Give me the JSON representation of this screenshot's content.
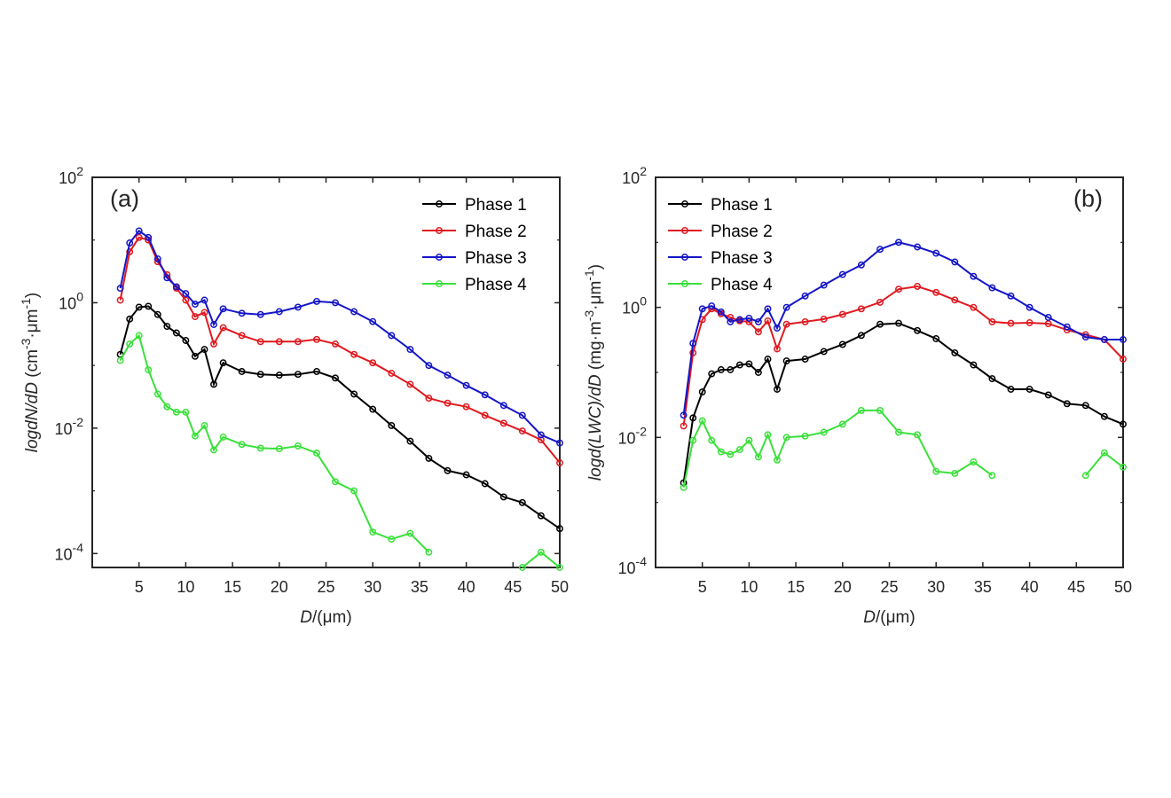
{
  "chart_data": [
    {
      "type": "line",
      "panel_label": "(a)",
      "xlabel_italic": "D",
      "xlabel_rest": "/(μm)",
      "ylabel_italic": "logdN/dD",
      "ylabel_rest": " (cm",
      "ylabel_sup1": "-3",
      "ylabel_mid": "·μm",
      "ylabel_sup2": "-1",
      "ylabel_end": ")",
      "xlim": [
        0,
        50
      ],
      "ylim": [
        6e-05,
        100
      ],
      "yscale": "log",
      "xticks": [
        5,
        10,
        15,
        20,
        25,
        30,
        35,
        40,
        45,
        50
      ],
      "xtick_labels": [
        "5",
        "10",
        "15",
        "20",
        "25",
        "30",
        "35",
        "40",
        "45",
        "50"
      ],
      "yticks": [
        0.0001,
        0.01,
        1,
        100
      ],
      "ytick_labels": [
        {
          "base": "10",
          "exp": "-4"
        },
        {
          "base": "10",
          "exp": "-2"
        },
        {
          "base": "10",
          "exp": "0"
        },
        {
          "base": "10",
          "exp": "2"
        }
      ],
      "legend_position": "top-right",
      "series": [
        {
          "name": "Phase 1",
          "color": "#000000",
          "x": [
            3,
            4,
            5,
            6,
            7,
            8,
            9,
            10,
            11,
            12,
            13,
            14,
            16,
            18,
            20,
            22,
            24,
            26,
            28,
            30,
            32,
            34,
            36,
            38,
            40,
            42,
            44,
            46,
            48,
            50
          ],
          "y": [
            0.15,
            0.55,
            0.85,
            0.88,
            0.65,
            0.42,
            0.33,
            0.25,
            0.14,
            0.18,
            0.05,
            0.11,
            0.08,
            0.072,
            0.07,
            0.072,
            0.08,
            0.063,
            0.035,
            0.02,
            0.011,
            0.0062,
            0.0033,
            0.0021,
            0.0018,
            0.0013,
            0.0008,
            0.00065,
            0.0004,
            0.00025
          ]
        },
        {
          "name": "Phase 2",
          "color": "#e0191f",
          "x": [
            3,
            4,
            5,
            6,
            7,
            8,
            9,
            10,
            11,
            12,
            13,
            14,
            16,
            18,
            20,
            22,
            24,
            26,
            28,
            30,
            32,
            34,
            36,
            38,
            40,
            42,
            44,
            46,
            48,
            50
          ],
          "y": [
            1.1,
            6.5,
            11,
            10,
            4.5,
            2.8,
            1.7,
            1.1,
            0.6,
            0.7,
            0.22,
            0.4,
            0.3,
            0.24,
            0.24,
            0.24,
            0.26,
            0.22,
            0.15,
            0.11,
            0.075,
            0.05,
            0.03,
            0.025,
            0.022,
            0.016,
            0.012,
            0.009,
            0.0065,
            0.0028
          ]
        },
        {
          "name": "Phase 3",
          "color": "#1515c8",
          "x": [
            3,
            4,
            5,
            6,
            7,
            8,
            9,
            10,
            11,
            12,
            13,
            14,
            16,
            18,
            20,
            22,
            24,
            26,
            28,
            30,
            32,
            34,
            36,
            38,
            40,
            42,
            44,
            46,
            48,
            50
          ],
          "y": [
            1.7,
            9,
            14,
            11,
            5,
            2.5,
            1.8,
            1.4,
            0.95,
            1.1,
            0.45,
            0.8,
            0.68,
            0.65,
            0.72,
            0.85,
            1.05,
            1.0,
            0.72,
            0.5,
            0.3,
            0.18,
            0.1,
            0.07,
            0.048,
            0.034,
            0.023,
            0.016,
            0.0078,
            0.0058
          ]
        },
        {
          "name": "Phase 4",
          "color": "#3ae03a",
          "x": [
            3,
            4,
            5,
            6,
            7,
            8,
            9,
            10,
            11,
            12,
            13,
            14,
            16,
            18,
            20,
            22,
            24,
            26,
            28,
            30,
            32,
            34,
            36,
            null,
            46,
            48,
            50
          ],
          "y": [
            0.12,
            0.22,
            0.3,
            0.085,
            0.035,
            0.022,
            0.018,
            0.018,
            0.0075,
            0.011,
            0.0045,
            0.0072,
            0.0055,
            0.0048,
            0.0047,
            0.0052,
            0.004,
            0.0014,
            0.001,
            0.00022,
            0.00017,
            0.00021,
            0.000105,
            null,
            6e-05,
            0.000105,
            6e-05
          ]
        }
      ]
    },
    {
      "type": "line",
      "panel_label": "(b)",
      "xlabel_italic": "D",
      "xlabel_rest": "/(μm)",
      "ylabel_italic": "logd(LWC)/dD",
      "ylabel_rest": " (mg·m",
      "ylabel_sup1": "-3",
      "ylabel_mid": "·μm",
      "ylabel_sup2": "-1",
      "ylabel_end": ")",
      "xlim": [
        0,
        50
      ],
      "ylim": [
        0.0001,
        100
      ],
      "yscale": "log",
      "xticks": [
        5,
        10,
        15,
        20,
        25,
        30,
        35,
        40,
        45,
        50
      ],
      "xtick_labels": [
        "5",
        "10",
        "15",
        "20",
        "25",
        "30",
        "35",
        "40",
        "45",
        "50"
      ],
      "yticks": [
        0.0001,
        0.01,
        1,
        100
      ],
      "ytick_labels": [
        {
          "base": "10",
          "exp": "-4"
        },
        {
          "base": "10",
          "exp": "-2"
        },
        {
          "base": "10",
          "exp": "0"
        },
        {
          "base": "10",
          "exp": "2"
        }
      ],
      "legend_position": "top-left",
      "series": [
        {
          "name": "Phase 1",
          "color": "#000000",
          "x": [
            3,
            4,
            5,
            6,
            7,
            8,
            9,
            10,
            11,
            12,
            13,
            14,
            16,
            18,
            20,
            22,
            24,
            26,
            28,
            30,
            32,
            34,
            36,
            38,
            40,
            42,
            44,
            46,
            48,
            50
          ],
          "y": [
            0.002,
            0.02,
            0.05,
            0.095,
            0.11,
            0.11,
            0.13,
            0.135,
            0.1,
            0.16,
            0.055,
            0.15,
            0.16,
            0.21,
            0.27,
            0.37,
            0.55,
            0.57,
            0.44,
            0.33,
            0.2,
            0.13,
            0.08,
            0.055,
            0.055,
            0.045,
            0.033,
            0.031,
            0.021,
            0.016
          ]
        },
        {
          "name": "Phase 2",
          "color": "#e0191f",
          "x": [
            3,
            4,
            5,
            6,
            7,
            8,
            9,
            10,
            11,
            12,
            13,
            14,
            16,
            18,
            20,
            22,
            24,
            26,
            28,
            30,
            32,
            34,
            36,
            38,
            40,
            42,
            44,
            46,
            48,
            50
          ],
          "y": [
            0.015,
            0.2,
            0.65,
            0.95,
            0.8,
            0.7,
            0.62,
            0.6,
            0.42,
            0.62,
            0.23,
            0.55,
            0.6,
            0.66,
            0.78,
            0.95,
            1.2,
            1.9,
            2.1,
            1.7,
            1.3,
            1.0,
            0.6,
            0.57,
            0.58,
            0.56,
            0.45,
            0.38,
            0.32,
            0.16
          ]
        },
        {
          "name": "Phase 3",
          "color": "#1515c8",
          "x": [
            3,
            4,
            5,
            6,
            7,
            8,
            9,
            10,
            11,
            12,
            13,
            14,
            16,
            18,
            20,
            22,
            24,
            26,
            28,
            30,
            32,
            34,
            36,
            38,
            40,
            42,
            44,
            46,
            48,
            50
          ],
          "y": [
            0.022,
            0.28,
            0.95,
            1.05,
            0.85,
            0.6,
            0.65,
            0.68,
            0.6,
            0.95,
            0.48,
            1.0,
            1.5,
            2.2,
            3.2,
            4.5,
            7.8,
            10,
            8.5,
            6.8,
            5.0,
            3.0,
            2.0,
            1.5,
            1.0,
            0.7,
            0.5,
            0.35,
            0.32,
            0.32
          ]
        },
        {
          "name": "Phase 4",
          "color": "#3ae03a",
          "x": [
            3,
            4,
            5,
            6,
            7,
            8,
            9,
            10,
            11,
            12,
            13,
            14,
            16,
            18,
            20,
            22,
            24,
            26,
            28,
            30,
            32,
            34,
            36,
            null,
            46,
            48,
            50
          ],
          "y": [
            0.0017,
            0.009,
            0.018,
            0.009,
            0.006,
            0.0055,
            0.0065,
            0.009,
            0.005,
            0.011,
            0.0045,
            0.01,
            0.0105,
            0.012,
            0.016,
            0.026,
            0.026,
            0.012,
            0.011,
            0.003,
            0.0028,
            0.0042,
            0.0026,
            null,
            0.0026,
            0.0058,
            0.0035
          ]
        }
      ]
    }
  ]
}
